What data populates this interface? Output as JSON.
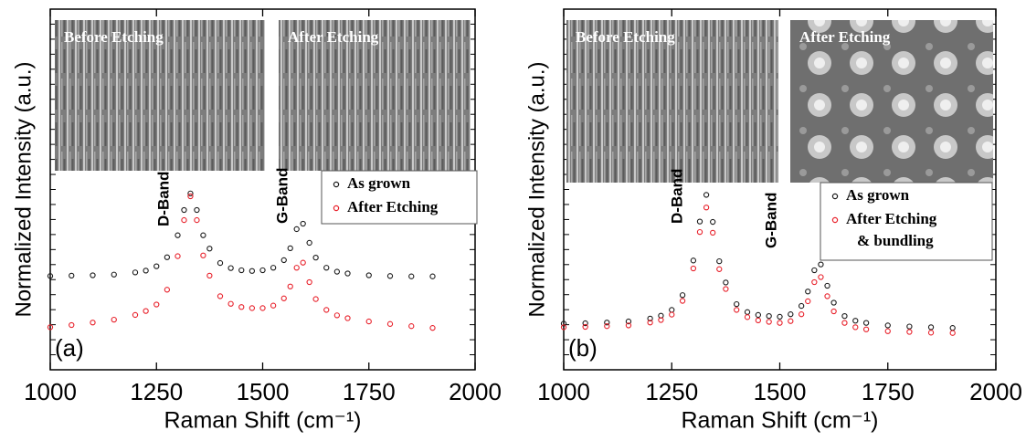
{
  "chart_data": [
    {
      "type": "scatter",
      "panel_label": "(a)",
      "x_label": "Raman Shift (cm⁻¹)",
      "y_label": "Normalized Intensity (a.u.)",
      "annotations": [
        "D-Band",
        "G-Band"
      ],
      "insets": [
        "Before Etching",
        "After Etching"
      ],
      "xlim": [
        1000,
        2000
      ],
      "xticks": [
        1000,
        1250,
        1500,
        1750,
        2000
      ],
      "ylim": [
        0,
        10
      ],
      "x": [
        1000,
        1050,
        1100,
        1150,
        1200,
        1225,
        1250,
        1275,
        1300,
        1315,
        1330,
        1345,
        1360,
        1375,
        1400,
        1425,
        1450,
        1475,
        1500,
        1525,
        1550,
        1565,
        1580,
        1595,
        1610,
        1625,
        1650,
        1675,
        1700,
        1750,
        1800,
        1850,
        1900
      ],
      "series": [
        {
          "name": "As grown",
          "color": "#1a1a1a",
          "values": [
            2.6,
            2.61,
            2.62,
            2.64,
            2.7,
            2.75,
            2.87,
            3.12,
            3.73,
            4.43,
            4.89,
            4.43,
            3.73,
            3.36,
            2.96,
            2.82,
            2.76,
            2.74,
            2.76,
            2.83,
            3.04,
            3.37,
            3.9,
            4.05,
            3.52,
            3.11,
            2.83,
            2.72,
            2.67,
            2.62,
            2.6,
            2.59,
            2.59
          ]
        },
        {
          "name": "After Etching",
          "color": "#e8202a",
          "values": [
            1.18,
            1.24,
            1.31,
            1.39,
            1.52,
            1.63,
            1.81,
            2.22,
            3.15,
            4.15,
            4.81,
            4.15,
            3.17,
            2.61,
            2.04,
            1.83,
            1.74,
            1.71,
            1.71,
            1.78,
            1.98,
            2.31,
            2.83,
            2.97,
            2.43,
            1.96,
            1.66,
            1.51,
            1.43,
            1.34,
            1.27,
            1.21,
            1.16
          ]
        }
      ]
    },
    {
      "type": "scatter",
      "panel_label": "(b)",
      "x_label": "Raman Shift (cm⁻¹)",
      "y_label": "Normalized Intensity (a.u.)",
      "annotations": [
        "D-Band",
        "G-Band"
      ],
      "insets": [
        "Before Etching",
        "After Etching"
      ],
      "xlim": [
        1000,
        2000
      ],
      "xticks": [
        1000,
        1250,
        1500,
        1750,
        2000
      ],
      "ylim": [
        0,
        10
      ],
      "x": [
        1000,
        1050,
        1100,
        1150,
        1200,
        1225,
        1250,
        1275,
        1300,
        1315,
        1330,
        1345,
        1360,
        1375,
        1400,
        1425,
        1450,
        1475,
        1500,
        1525,
        1550,
        1565,
        1580,
        1595,
        1610,
        1625,
        1650,
        1675,
        1700,
        1750,
        1800,
        1850,
        1900
      ],
      "series": [
        {
          "name": "As grown",
          "color": "#1a1a1a",
          "values": [
            1.28,
            1.29,
            1.31,
            1.34,
            1.42,
            1.5,
            1.66,
            2.07,
            3.03,
            4.11,
            4.85,
            4.1,
            3.01,
            2.42,
            1.82,
            1.6,
            1.52,
            1.49,
            1.47,
            1.54,
            1.77,
            2.17,
            2.76,
            2.92,
            2.33,
            1.86,
            1.49,
            1.36,
            1.3,
            1.23,
            1.2,
            1.18,
            1.16
          ]
        },
        {
          "name": "After Etching & bundling",
          "color": "#e8202a",
          "values": [
            1.18,
            1.19,
            1.21,
            1.23,
            1.31,
            1.38,
            1.53,
            1.91,
            2.81,
            3.82,
            4.5,
            3.8,
            2.79,
            2.24,
            1.66,
            1.46,
            1.37,
            1.33,
            1.3,
            1.35,
            1.54,
            1.9,
            2.43,
            2.57,
            2.04,
            1.62,
            1.3,
            1.18,
            1.12,
            1.07,
            1.05,
            1.03,
            1.02
          ]
        }
      ]
    }
  ]
}
